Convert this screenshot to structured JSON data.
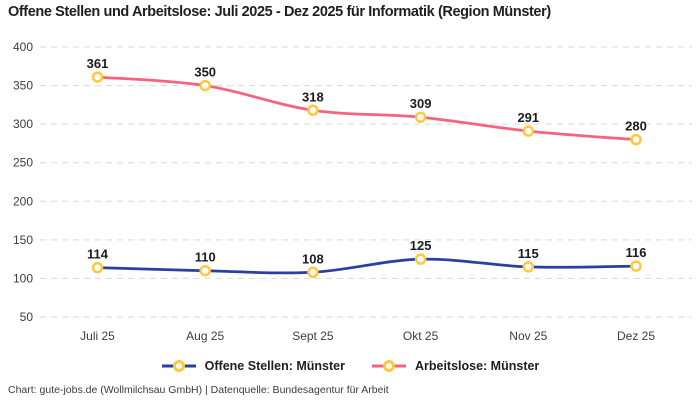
{
  "title": "Offene Stellen und Arbeitslose: Juli 2025 - Dez 2025 für Informatik (Region Münster)",
  "footer": "Chart: gute-jobs.de (Wollmilchsau GmbH) | Datenquelle: Bundesagentur für Arbeit",
  "chart_data": {
    "type": "line",
    "title": "Offene Stellen und Arbeitslose: Juli 2025 - Dez 2025 für Informatik (Region Münster)",
    "categories": [
      "Juli 25",
      "Aug 25",
      "Sept 25",
      "Okt 25",
      "Nov 25",
      "Dez 25"
    ],
    "series": [
      {
        "name": "Offene Stellen: Münster",
        "values": [
          114,
          110,
          108,
          125,
          115,
          116
        ],
        "color": "#2b3f9e"
      },
      {
        "name": "Arbeitslose: Münster",
        "values": [
          361,
          350,
          318,
          309,
          291,
          280
        ],
        "color": "#f6637e"
      }
    ],
    "yticks": [
      50,
      100,
      150,
      200,
      250,
      300,
      350,
      400
    ],
    "ylim": [
      50,
      400
    ],
    "grid": "horizontal-dashed",
    "grid_color": "#d9d9d9",
    "marker_color": "#ffc83d",
    "marker_fill": "#ffffff",
    "legend_position": "bottom",
    "data_labels": true
  }
}
